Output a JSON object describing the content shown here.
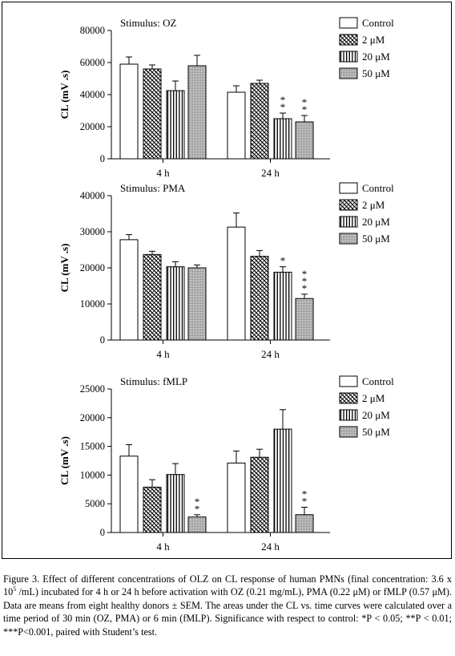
{
  "chart_data": [
    {
      "type": "bar",
      "annotation": "Stimulus: OZ",
      "ylabel": "CL (mV .s)",
      "ylim": [
        0,
        80000
      ],
      "yticks": [
        0,
        20000,
        40000,
        60000,
        80000
      ],
      "categories": [
        "4 h",
        "24 h"
      ],
      "series": [
        {
          "name": "Control",
          "values": [
            59000,
            41500
          ],
          "errors": [
            4500,
            4000
          ],
          "significance": [
            "",
            ""
          ]
        },
        {
          "name": "2 μM",
          "values": [
            56000,
            47000
          ],
          "errors": [
            2500,
            2000
          ],
          "significance": [
            "",
            ""
          ]
        },
        {
          "name": "20 μM",
          "values": [
            42500,
            25000
          ],
          "errors": [
            6000,
            3500
          ],
          "significance": [
            "",
            "**"
          ]
        },
        {
          "name": "50 μM",
          "values": [
            58000,
            23000
          ],
          "errors": [
            6500,
            4000
          ],
          "significance": [
            "",
            "**"
          ]
        }
      ],
      "legend": "top-right"
    },
    {
      "type": "bar",
      "annotation": "Stimulus: PMA",
      "ylabel": "CL (mV .s)",
      "ylim": [
        0,
        40000
      ],
      "yticks": [
        0,
        10000,
        20000,
        30000,
        40000
      ],
      "categories": [
        "4 h",
        "24 h"
      ],
      "series": [
        {
          "name": "Control",
          "values": [
            27800,
            31300
          ],
          "errors": [
            1400,
            3900
          ],
          "significance": [
            "",
            ""
          ]
        },
        {
          "name": "2 μM",
          "values": [
            23700,
            23200
          ],
          "errors": [
            900,
            1600
          ],
          "significance": [
            "",
            ""
          ]
        },
        {
          "name": "20 μM",
          "values": [
            20300,
            18800
          ],
          "errors": [
            1400,
            1500
          ],
          "significance": [
            "",
            "*"
          ]
        },
        {
          "name": "50 μM",
          "values": [
            20000,
            11500
          ],
          "errors": [
            800,
            1200
          ],
          "significance": [
            "",
            "***"
          ]
        }
      ],
      "legend": "top-right"
    },
    {
      "type": "bar",
      "annotation": "Stimulus: fMLP",
      "ylabel": "CL (mV .s)",
      "ylim": [
        0,
        25000
      ],
      "yticks": [
        0,
        5000,
        10000,
        15000,
        20000,
        25000
      ],
      "categories": [
        "4 h",
        "24 h"
      ],
      "series": [
        {
          "name": "Control",
          "values": [
            13300,
            12100
          ],
          "errors": [
            2000,
            2100
          ],
          "significance": [
            "",
            ""
          ]
        },
        {
          "name": "2 μM",
          "values": [
            7900,
            13100
          ],
          "errors": [
            1300,
            1400
          ],
          "significance": [
            "",
            ""
          ]
        },
        {
          "name": "20 μM",
          "values": [
            10100,
            18000
          ],
          "errors": [
            1900,
            3400
          ],
          "significance": [
            "",
            ""
          ]
        },
        {
          "name": "50 μM",
          "values": [
            2700,
            3100
          ],
          "errors": [
            400,
            1300
          ],
          "significance": [
            "**",
            "**"
          ]
        }
      ],
      "legend": "top-right"
    }
  ],
  "caption": {
    "text_a": "Figure 3. Effect of different concentrations of OLZ on CL response of human PMNs (final concentration: 3.6 x 10",
    "exponent": "5",
    "text_b": " /mL) incubated for 4 h or 24 h before activation with OZ (0.21 mg/mL), PMA (0.22 μM) or fMLP (0.57 μM). Data are means from eight healthy donors ± SEM. The areas under the CL vs. time curves were calculated over a time period of 30 min (OZ, PMA) or 6 min (fMLP). Significance with respect to control: *P < 0.05; **P < 0.01; ***P<0.001, paired with Student’s test."
  }
}
